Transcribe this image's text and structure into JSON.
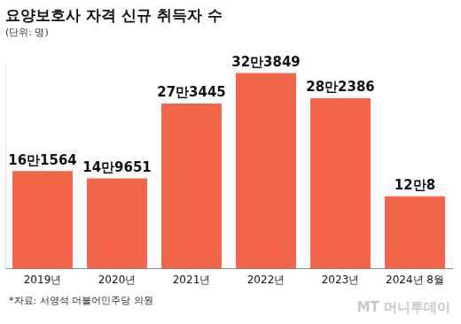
{
  "chart_data": {
    "type": "bar",
    "title": "요양보호사 자격 신규 취득자 수",
    "subtitle": "(단위: 명)",
    "categories": [
      "2019년",
      "2020년",
      "2021년",
      "2022년",
      "2023년",
      "2024년 8월"
    ],
    "values": [
      161564,
      149651,
      273445,
      323849,
      282386,
      120008
    ],
    "value_labels": [
      "16만1564",
      "14만9651",
      "27만3445",
      "32만3849",
      "28만2386",
      "12만8"
    ],
    "color": "#f26549",
    "ylim": [
      0,
      340000
    ],
    "grid": false,
    "data_labels": true,
    "tick_labels": "x",
    "source": "*자료: 서영석 더불어민주당 의원",
    "credit": "MT 머니투데이"
  }
}
